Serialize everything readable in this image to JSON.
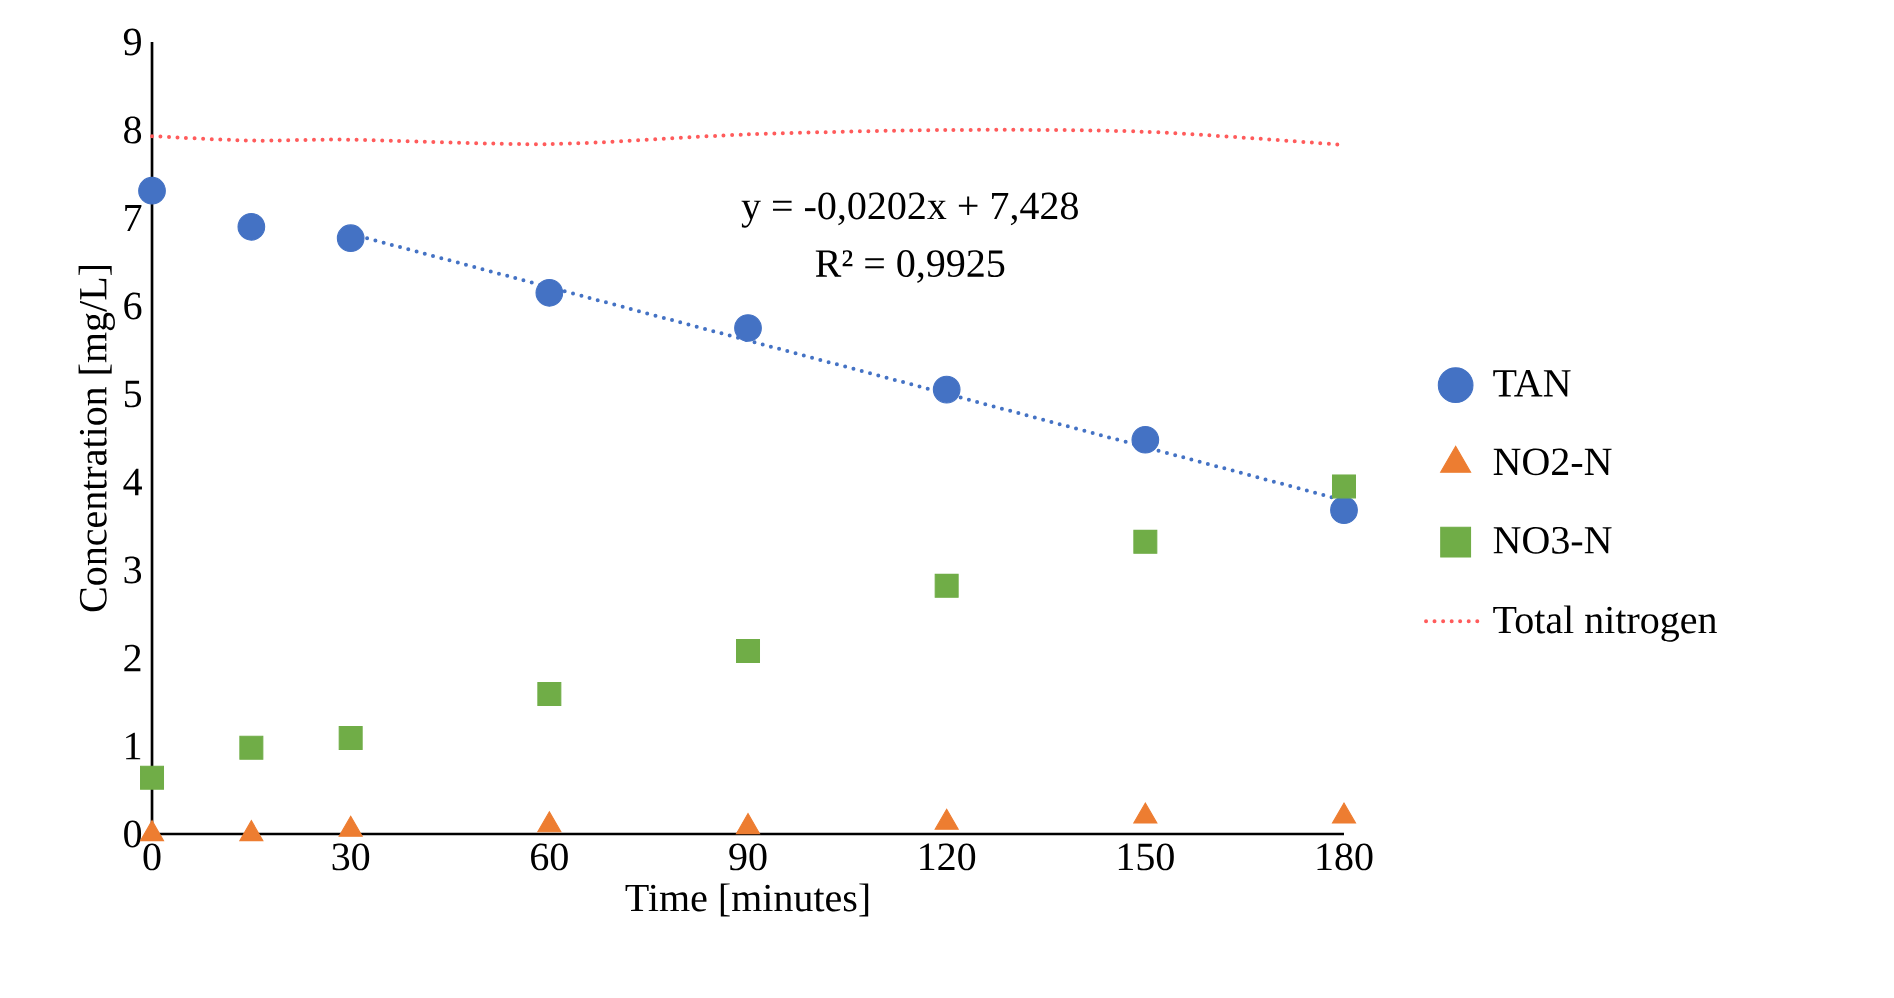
{
  "chart_data": {
    "type": "scatter",
    "xlabel": "Time [minutes]",
    "ylabel": "Concentration [mg/L]",
    "xlim": [
      0,
      180
    ],
    "ylim": [
      0,
      9
    ],
    "xticks": [
      0,
      30,
      60,
      90,
      120,
      150,
      180
    ],
    "yticks": [
      0,
      1,
      2,
      3,
      4,
      5,
      6,
      7,
      8,
      9
    ],
    "x": [
      0,
      15,
      30,
      60,
      90,
      120,
      150,
      180
    ],
    "series": [
      {
        "name": "TAN",
        "type": "scatter",
        "marker": "circle",
        "color": "#4472c4",
        "values": [
          7.31,
          6.9,
          6.77,
          6.15,
          5.75,
          5.05,
          4.48,
          3.68
        ]
      },
      {
        "name": "NO2-N",
        "type": "scatter",
        "marker": "triangle",
        "color": "#ed7d31",
        "values": [
          0.0,
          0.0,
          0.05,
          0.1,
          0.08,
          0.13,
          0.2,
          0.2
        ]
      },
      {
        "name": "NO3-N",
        "type": "scatter",
        "marker": "square",
        "color": "#70ad47",
        "values": [
          0.64,
          0.98,
          1.09,
          1.59,
          2.08,
          2.82,
          3.32,
          3.95
        ]
      },
      {
        "name": "Total nitrogen",
        "type": "line",
        "marker": "none",
        "line_style": "dotted",
        "color": "#ff5b5b",
        "values": [
          7.93,
          7.88,
          7.89,
          7.84,
          7.95,
          8.0,
          7.98,
          7.83
        ]
      },
      {
        "type": "line",
        "marker": "none",
        "line_style": "dotted",
        "color": "#4472c4",
        "x": [
          30,
          180
        ],
        "values": [
          6.82,
          3.79
        ]
      }
    ],
    "annotations": [
      "y = -0,0202x + 7,428",
      "R² = 0,9925"
    ],
    "legend": "right",
    "grid": false
  }
}
